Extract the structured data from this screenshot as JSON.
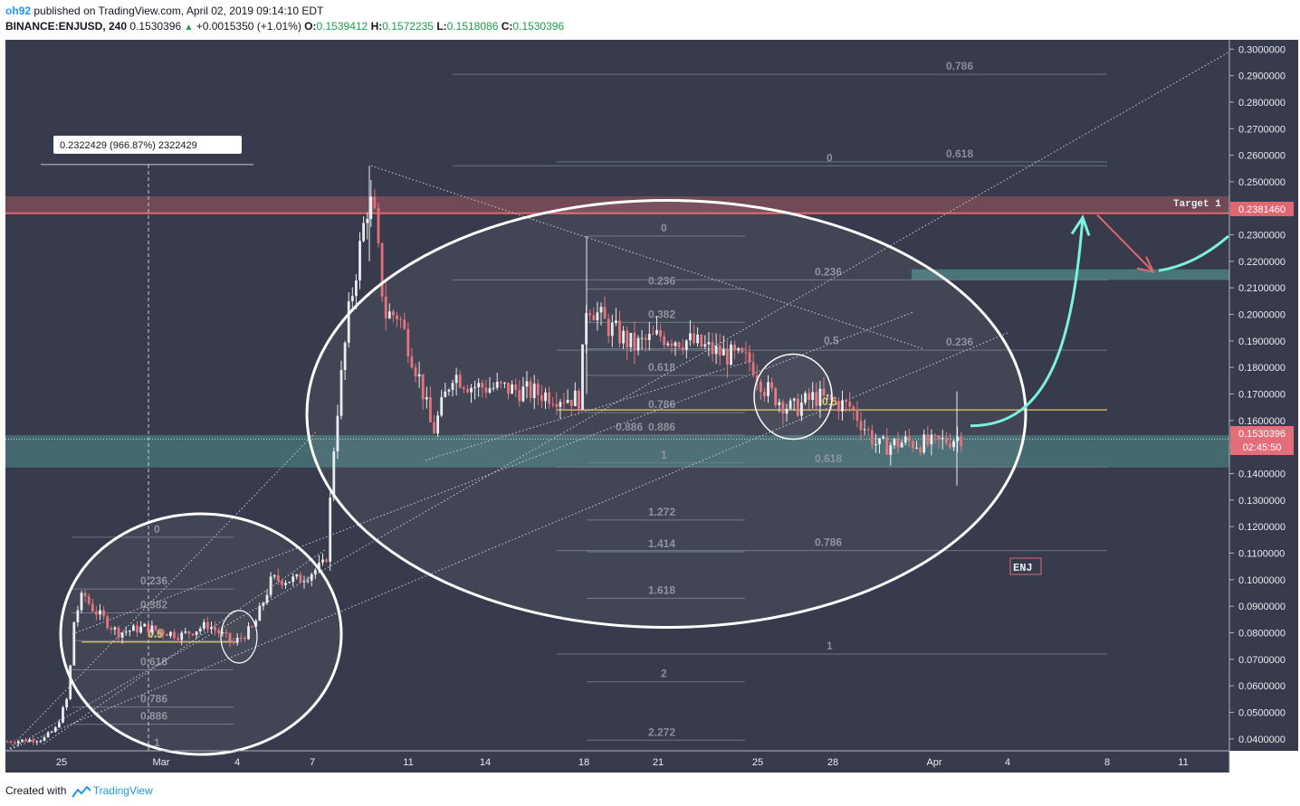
{
  "header": {
    "user": "oh92",
    "published": "published on TradingView.com, April 02, 2019 09:14:10 EDT",
    "symbol": "BINANCE:ENJUSD, 240",
    "last": "0.1530396",
    "change_arrow": "▲",
    "change": "+0.0015350 (+1.01%)",
    "o_label": "O:",
    "o_value": "0.1539412",
    "h_label": "H:",
    "h_value": "0.1572235",
    "l_label": "L:",
    "l_value": "0.1518086",
    "c_label": "C:",
    "c_value": "0.1530396"
  },
  "footer": {
    "created": "Created with",
    "brand": "TradingView",
    "logo_icon": "tradingview-logo-icon"
  },
  "colors": {
    "background": "#373b4b",
    "up": "#e9ecef",
    "down": "#e36e79",
    "resistance": "#e06670",
    "support_zone": "#4d8a87",
    "arrow_up": "#7df2da",
    "fib_text": "#8a8f99",
    "highlight": "#e4c75a"
  },
  "chart_data": {
    "type": "candlestick",
    "symbol": "BINANCE:ENJUSD",
    "interval": "240",
    "y_range": [
      0.0355,
      0.3035
    ],
    "y_ticks": [
      "0.3000000",
      "0.2900000",
      "0.2800000",
      "0.2700000",
      "0.2600000",
      "0.2500000",
      "0.2400000",
      "0.2300000",
      "0.2200000",
      "0.2100000",
      "0.2000000",
      "0.1900000",
      "0.1800000",
      "0.1700000",
      "0.1600000",
      "0.1500000",
      "0.1400000",
      "0.1300000",
      "0.1200000",
      "0.1100000",
      "0.1000000",
      "0.0900000",
      "0.0800000",
      "0.0700000",
      "0.0600000",
      "0.0500000",
      "0.0400000"
    ],
    "x_ticks": [
      "25",
      "Mar",
      "4",
      "7",
      "11",
      "14",
      "18",
      "21",
      "25",
      "28",
      "Apr",
      "4",
      "8",
      "11"
    ],
    "price_labels": {
      "target": "0.2381460",
      "last": "0.1530396",
      "countdown": "02:45:50"
    },
    "annotations": {
      "measure": "0.2322429 (966.87%) 2322429",
      "target": "Target 1",
      "symbol_box": "ENJ"
    },
    "fib_levels": {
      "set_a": [
        "0.786",
        "0.618",
        "0.236",
        "0.618",
        "0.786",
        "1"
      ],
      "set_b": [
        "0",
        "0.236",
        "0.382",
        "0.5",
        "0.618",
        "0.786",
        "0.886",
        "1",
        "1.272",
        "1.414",
        "1.618",
        "2",
        "2.272"
      ],
      "set_c": [
        "0",
        "0.236",
        "0.382",
        "0.5",
        "0.618",
        "0.886",
        "1"
      ],
      "set_d": [
        "0",
        "0.236",
        "0.382",
        "0.5",
        "0.618",
        "0.786",
        "0.886",
        "1"
      ],
      "set_e": [
        "0.886",
        "0.5"
      ]
    },
    "series": [
      {
        "period": "Feb 23 - Feb 25",
        "open": 0.04,
        "high": 0.046,
        "low": 0.036,
        "close": 0.045
      },
      {
        "period": "Feb 26",
        "open": 0.08,
        "high": 0.116,
        "low": 0.075,
        "close": 0.092
      },
      {
        "period": "Mar 1 - Mar 4",
        "open": 0.083,
        "high": 0.09,
        "low": 0.074,
        "close": 0.079
      },
      {
        "period": "Mar 7",
        "open": 0.1,
        "high": 0.111,
        "low": 0.098,
        "close": 0.104
      },
      {
        "period": "Mar 9",
        "open": 0.215,
        "high": 0.256,
        "low": 0.196,
        "close": 0.245
      },
      {
        "period": "Mar 12",
        "open": 0.16,
        "high": 0.179,
        "low": 0.145,
        "close": 0.165
      },
      {
        "period": "Mar 18",
        "open": 0.175,
        "high": 0.229,
        "low": 0.168,
        "close": 0.205
      },
      {
        "period": "Mar 21",
        "open": 0.19,
        "high": 0.204,
        "low": 0.18,
        "close": 0.187
      },
      {
        "period": "Mar 25",
        "open": 0.178,
        "high": 0.19,
        "low": 0.171,
        "close": 0.172
      },
      {
        "period": "Mar 27",
        "open": 0.165,
        "high": 0.176,
        "low": 0.16,
        "close": 0.168
      },
      {
        "period": "Mar 30",
        "open": 0.152,
        "high": 0.16,
        "low": 0.145,
        "close": 0.15
      },
      {
        "period": "Apr 2",
        "open": 0.1539412,
        "high": 0.1572235,
        "low": 0.1518086,
        "close": 0.1530396
      }
    ]
  }
}
